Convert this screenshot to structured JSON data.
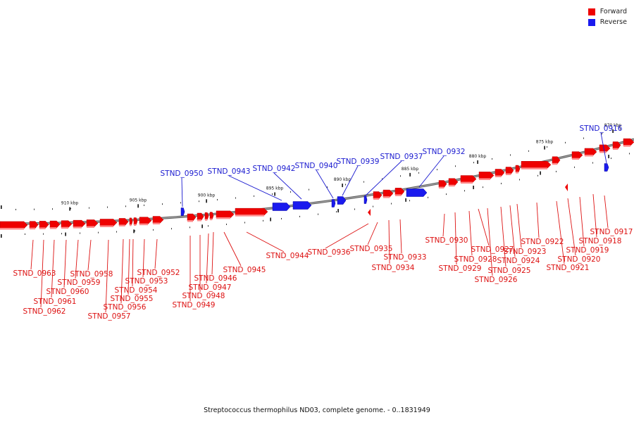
{
  "legend": [
    {
      "label": "Forward",
      "color": "#ee0000"
    },
    {
      "label": "Reverse",
      "color": "#1a1aee"
    }
  ],
  "caption": "Streptococcus thermophilus ND03, complete genome. - 0..1831949",
  "colors": {
    "forward": "#ee0000",
    "forward_label": "#dd1111",
    "reverse": "#1a1aee",
    "reverse_label": "#1a1ad0",
    "backbone": "#888888"
  },
  "kbp_marks": [
    "870 kbp",
    "875 kbp",
    "880 kbp",
    "885 kbp",
    "890 kbp",
    "895 kbp",
    "900 kbp",
    "905 kbp",
    "910 kbp"
  ],
  "reverse_genes": [
    "STND_0916",
    "STND_0932",
    "STND_0937",
    "STND_0939",
    "STND_0940",
    "STND_0942",
    "STND_0943",
    "STND_0950"
  ],
  "forward_genes": [
    "STND_0917",
    "STND_0918",
    "STND_0919",
    "STND_0920",
    "STND_0921",
    "STND_0922",
    "STND_0923",
    "STND_0924",
    "STND_0925",
    "STND_0926",
    "STND_0927",
    "STND_0928",
    "STND_0929",
    "STND_0930",
    "STND_0933",
    "STND_0934",
    "STND_0935",
    "STND_0936",
    "STND_0944",
    "STND_0945",
    "STND_0946",
    "STND_0947",
    "STND_0948",
    "STND_0949",
    "STND_0952",
    "STND_0953",
    "STND_0954",
    "STND_0955",
    "STND_0956",
    "STND_0957",
    "STND_0958",
    "STND_0959",
    "STND_0960",
    "STND_0961",
    "STND_0962",
    "STND_0963"
  ]
}
